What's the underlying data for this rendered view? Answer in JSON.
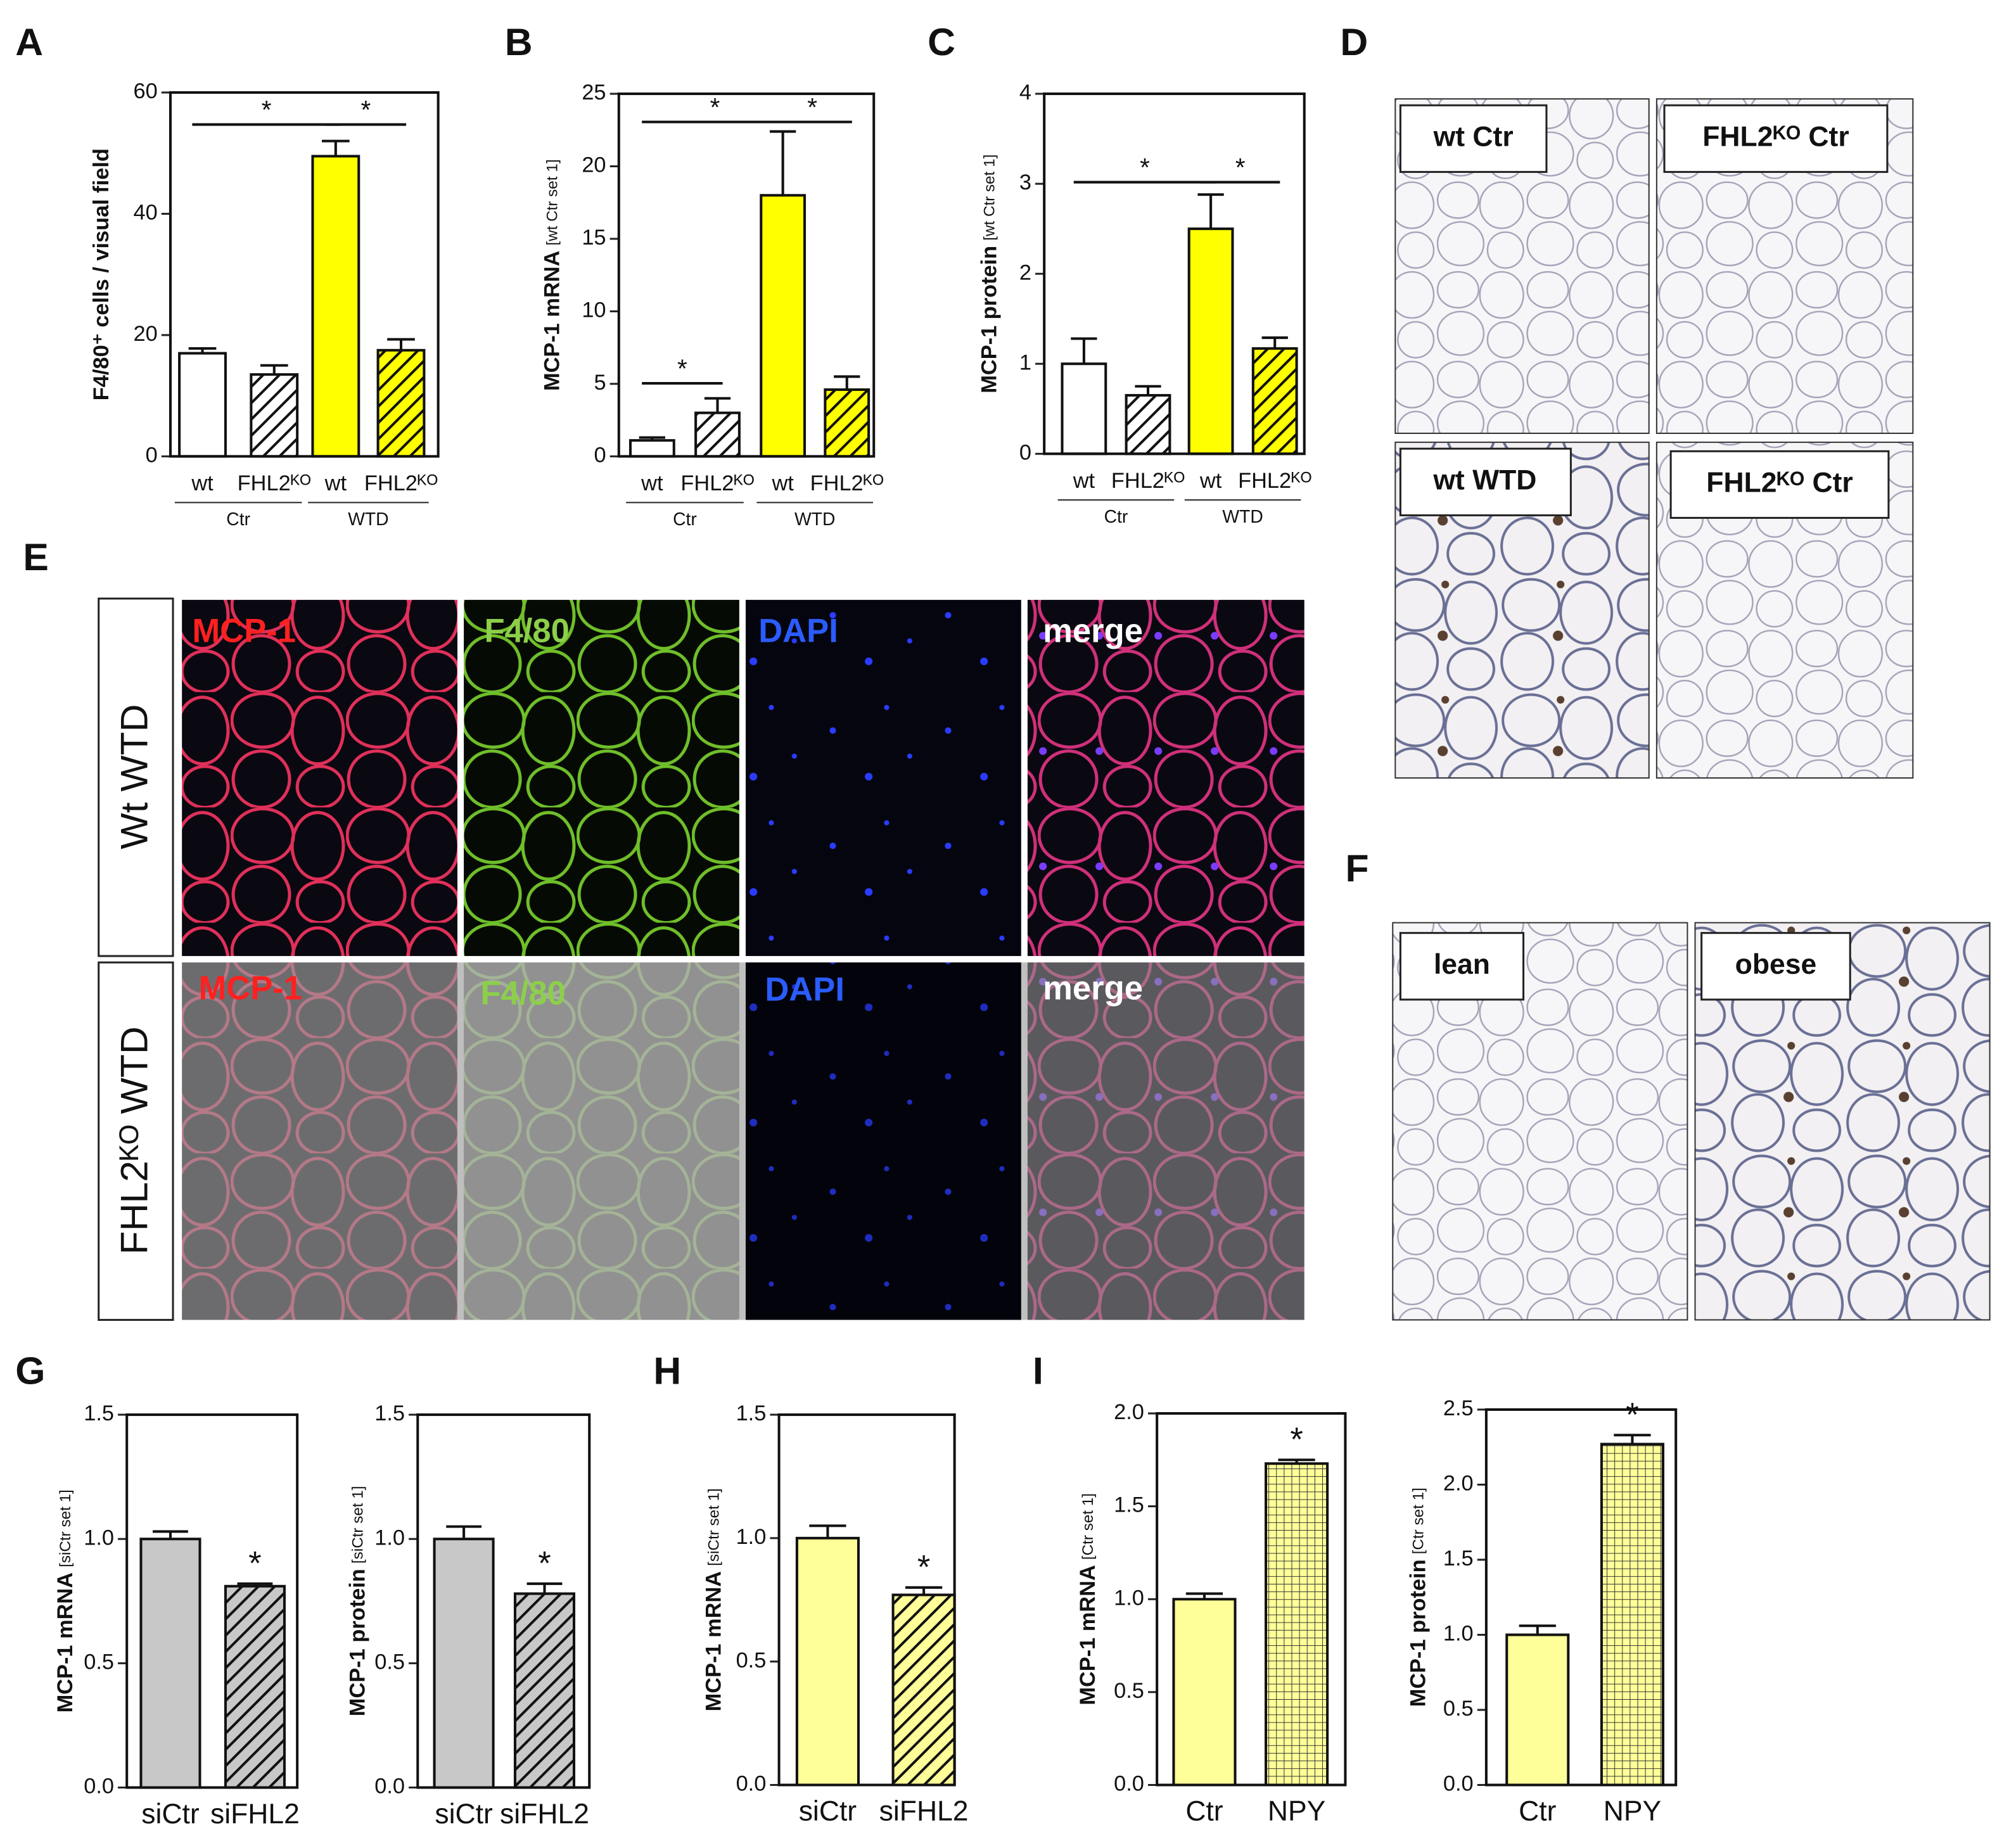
{
  "panels": [
    "A",
    "B",
    "C",
    "D",
    "E",
    "F",
    "G",
    "H",
    "I"
  ],
  "chart_data": [
    {
      "type": "bar",
      "ylabel": "F4/80⁺ cells / visual field",
      "categories": [
        "wt",
        "FHL2ᴷᴼ",
        "wt",
        "FHL2ᴷᴼ"
      ],
      "groups": [
        "Ctr",
        "WTD"
      ],
      "values": [
        17,
        13.5,
        49.5,
        17.5
      ],
      "errors": [
        0.8,
        1.5,
        2.5,
        1.8
      ],
      "colors": [
        "#ffffff",
        "#ffffff",
        "#ffff00",
        "#ffff00"
      ],
      "fills": [
        "solid",
        "diagonal",
        "solid",
        "diagonal"
      ],
      "ylim": [
        0,
        60
      ],
      "yticks": [
        0,
        20,
        40,
        60
      ],
      "significance": [
        {
          "label": "*",
          "bars": [
            0,
            2
          ]
        },
        {
          "label": "*",
          "bars": [
            2,
            3
          ]
        }
      ]
    },
    {
      "type": "bar",
      "ylabel": "MCP-1 mRNA",
      "ylabel_unit": "[wt Ctr set 1]",
      "categories": [
        "wt",
        "FHL2ᴷᴼ",
        "wt",
        "FHL2ᴷᴼ"
      ],
      "groups": [
        "Ctr",
        "WTD"
      ],
      "values": [
        1.1,
        3.0,
        18,
        4.6
      ],
      "errors": [
        0.2,
        1.0,
        4.4,
        0.9
      ],
      "colors": [
        "#ffffff",
        "#ffffff",
        "#ffff00",
        "#ffff00"
      ],
      "fills": [
        "solid",
        "diagonal",
        "solid",
        "diagonal"
      ],
      "ylim": [
        0,
        25
      ],
      "yticks": [
        0,
        5,
        10,
        15,
        20,
        25
      ],
      "significance": [
        {
          "label": "*",
          "bars": [
            0,
            2
          ]
        },
        {
          "label": "*",
          "bars": [
            2,
            3
          ]
        },
        {
          "label": "*",
          "bars": [
            0,
            1
          ]
        }
      ]
    },
    {
      "type": "bar",
      "ylabel": "MCP-1 protein",
      "ylabel_unit": "[wt Ctr set 1]",
      "categories": [
        "wt",
        "FHL2ᴷᴼ",
        "wt",
        "FHL2ᴷᴼ"
      ],
      "groups": [
        "Ctr",
        "WTD"
      ],
      "values": [
        1.0,
        0.65,
        2.5,
        1.17
      ],
      "errors": [
        0.28,
        0.1,
        0.38,
        0.12
      ],
      "colors": [
        "#ffffff",
        "#ffffff",
        "#ffff00",
        "#ffff00"
      ],
      "fills": [
        "solid",
        "diagonal",
        "solid",
        "diagonal"
      ],
      "ylim": [
        0,
        4
      ],
      "yticks": [
        0,
        1,
        2,
        3,
        4
      ],
      "significance": [
        {
          "label": "*",
          "bars": [
            0,
            2
          ]
        },
        {
          "label": "*",
          "bars": [
            2,
            3
          ]
        }
      ]
    },
    {
      "type": "bar",
      "ylabel": "MCP-1 mRNA",
      "ylabel_unit": "[siCtr set 1]",
      "categories": [
        "siCtr",
        "siFHL2"
      ],
      "values": [
        1.0,
        0.81
      ],
      "errors": [
        0.03,
        0.01
      ],
      "colors": [
        "#c8c8c8",
        "#c8c8c8"
      ],
      "fills": [
        "solid",
        "diagonal"
      ],
      "ylim": [
        0,
        1.5
      ],
      "yticks": [
        {
          "value": 0,
          "label": "0.0"
        },
        0.5,
        {
          "value": 1,
          "label": "1.0"
        },
        1.5
      ],
      "significance": [
        {
          "label": "*",
          "bars": [
            1
          ]
        }
      ]
    },
    {
      "type": "bar",
      "ylabel": "MCP-1 protein",
      "ylabel_unit": "[siCtr set 1]",
      "categories": [
        "siCtr",
        "siFHL2"
      ],
      "values": [
        1.0,
        0.78
      ],
      "errors": [
        0.05,
        0.04
      ],
      "colors": [
        "#c8c8c8",
        "#c8c8c8"
      ],
      "fills": [
        "solid",
        "diagonal"
      ],
      "ylim": [
        0,
        1.5
      ],
      "yticks": [
        {
          "value": 0,
          "label": "0.0"
        },
        0.5,
        {
          "value": 1,
          "label": "1.0"
        },
        1.5
      ],
      "significance": [
        {
          "label": "*",
          "bars": [
            1
          ]
        }
      ]
    },
    {
      "type": "bar",
      "ylabel": "MCP-1 mRNA",
      "ylabel_unit": "[siCtr set 1]",
      "categories": [
        "siCtr",
        "siFHL2"
      ],
      "values": [
        1.0,
        0.77
      ],
      "errors": [
        0.05,
        0.03
      ],
      "colors": [
        "#ffff99",
        "#ffff99"
      ],
      "fills": [
        "solid",
        "diagonal"
      ],
      "ylim": [
        0,
        1.5
      ],
      "yticks": [
        {
          "value": 0,
          "label": "0.0"
        },
        0.5,
        {
          "value": 1,
          "label": "1.0"
        },
        1.5
      ],
      "significance": [
        {
          "label": "*",
          "bars": [
            1
          ]
        }
      ]
    },
    {
      "type": "bar",
      "ylabel": "MCP-1 mRNA",
      "ylabel_unit": "[Ctr set 1]",
      "categories": [
        "Ctr",
        "NPY"
      ],
      "values": [
        1.0,
        1.73
      ],
      "errors": [
        0.03,
        0.02
      ],
      "colors": [
        "#ffff99",
        "#ffff99"
      ],
      "fills": [
        "solid",
        "grid"
      ],
      "ylim": [
        0,
        2
      ],
      "yticks": [
        {
          "value": 0,
          "label": "0.0"
        },
        0.5,
        {
          "value": 1,
          "label": "1.0"
        },
        1.5,
        {
          "value": 2,
          "label": "2.0"
        }
      ],
      "significance": [
        {
          "label": "*",
          "bars": [
            1
          ]
        }
      ]
    },
    {
      "type": "bar",
      "ylabel": "MCP-1 protein",
      "ylabel_unit": "[Ctr set 1]",
      "categories": [
        "Ctr",
        "NPY"
      ],
      "values": [
        1.0,
        2.27
      ],
      "errors": [
        0.06,
        0.06
      ],
      "colors": [
        "#ffff99",
        "#ffff99"
      ],
      "fills": [
        "solid",
        "grid"
      ],
      "ylim": [
        0,
        2.5
      ],
      "yticks": [
        {
          "value": 0,
          "label": "0.0"
        },
        0.5,
        {
          "value": 1,
          "label": "1.0"
        },
        1.5,
        {
          "value": 2,
          "label": "2.0"
        },
        2.5
      ],
      "significance": [
        {
          "label": "*",
          "bars": [
            1
          ]
        }
      ]
    }
  ],
  "micrographs": {
    "D": {
      "labels": [
        "wt Ctr",
        "FHL2ᴷᴼ Ctr",
        "wt WTD",
        "FHL2ᴷᴼ Ctr"
      ]
    },
    "E": {
      "rows": [
        "Wt WTD",
        "FHL2ᴷᴼ WTD"
      ],
      "stains": [
        [
          "MCP-1",
          "F4/80",
          "DAPI",
          "merge"
        ],
        [
          "MCP-1",
          "F4/80",
          "DAPI",
          "merge"
        ]
      ]
    },
    "F": {
      "labels": [
        "lean",
        "obese"
      ]
    }
  }
}
